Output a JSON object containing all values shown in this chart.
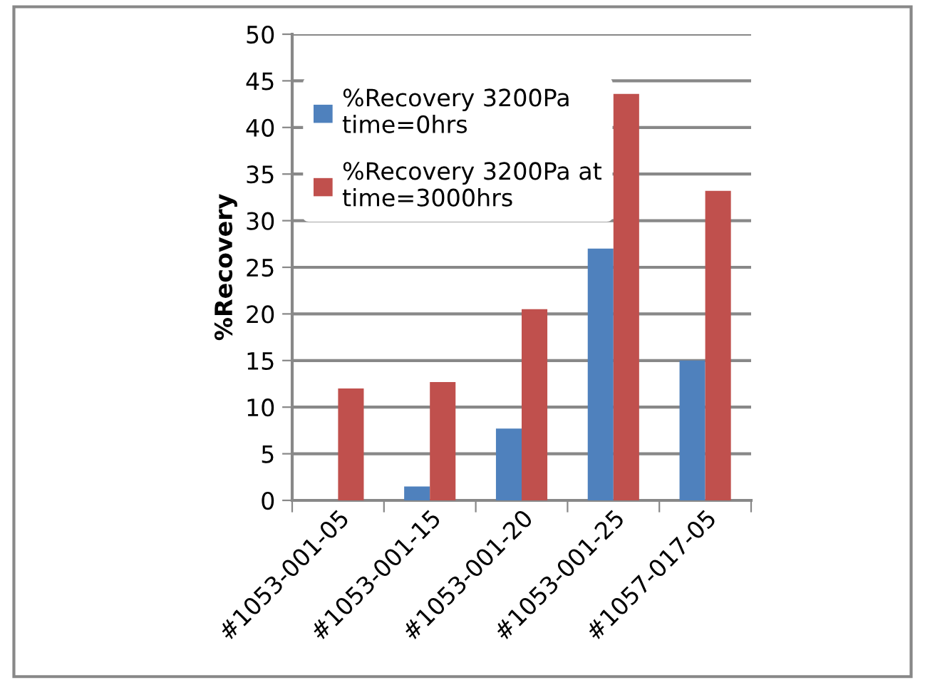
{
  "chart_data": {
    "type": "bar",
    "ylabel": "%Recovery",
    "categories": [
      "#1053-001-05",
      "#1053-001-15",
      "#1053-001-20",
      "#1053-001-25",
      "#1057-017-05"
    ],
    "series": [
      {
        "name": "%Recovery 3200Pa time=0hrs",
        "color": "#4f81bd",
        "values": [
          null,
          1.5,
          7.7,
          27,
          15
        ]
      },
      {
        "name": "%Recovery 3200Pa at time=3000hrs",
        "color": "#c0504d",
        "values": [
          12,
          12.7,
          20.5,
          43.6,
          33.2
        ]
      }
    ],
    "ylim": [
      0,
      50
    ],
    "yticks": [
      0,
      5,
      10,
      15,
      20,
      25,
      30,
      35,
      40,
      45,
      50
    ],
    "grid": "y",
    "legend": "top left"
  }
}
